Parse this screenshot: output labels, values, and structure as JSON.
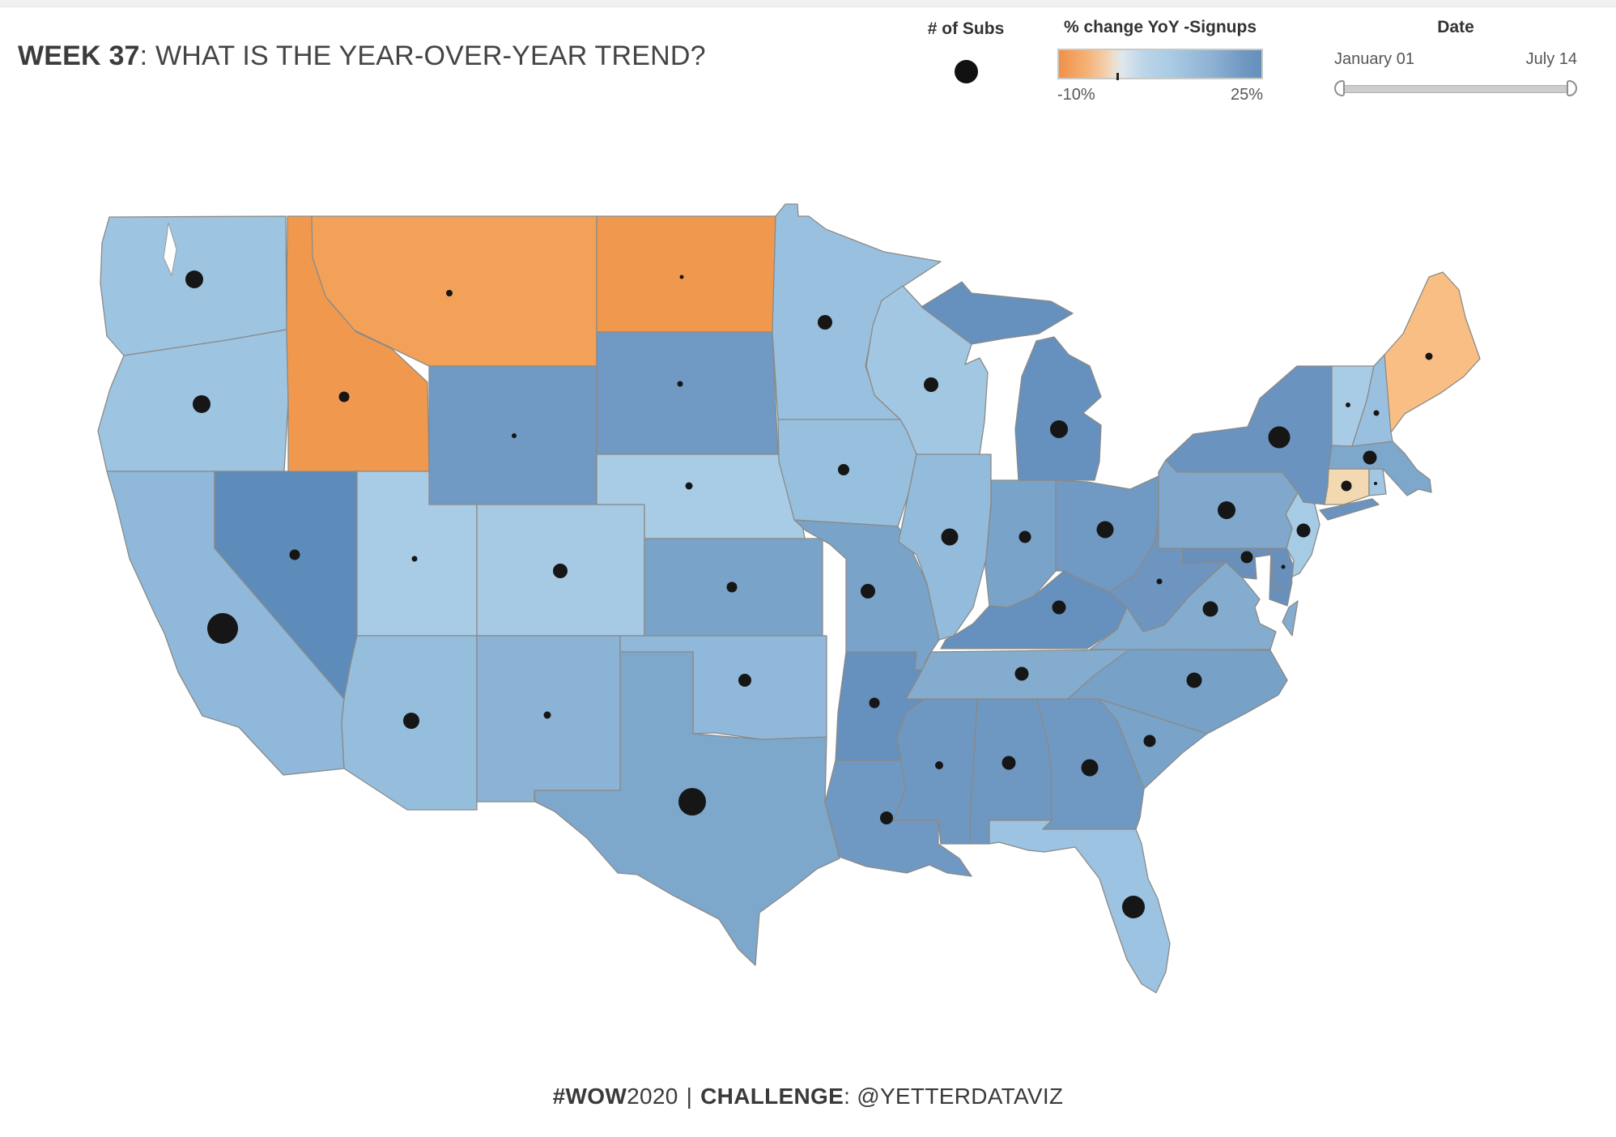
{
  "header": {
    "title_bold": "WEEK 37",
    "title_rest": ": WHAT IS THE YEAR-OVER-YEAR TREND?"
  },
  "legends": {
    "subs": {
      "label": "# of Subs"
    },
    "color": {
      "label": "% change YoY -Signups",
      "min_label": "-10%",
      "max_label": "25%",
      "min_value": -10,
      "max_value": 25,
      "zero_tick_pct": 28.6,
      "min_color": "#F0914A",
      "max_color": "#6590BC"
    },
    "date": {
      "label": "Date",
      "start_label": "January 01",
      "end_label": "July 14"
    }
  },
  "footer": {
    "tag_bold": "#WOW",
    "tag_rest": "2020",
    "separator": "|",
    "challenge_bold": "CHALLENGE",
    "challenge_rest": ": @YETTERDATAVIZ"
  },
  "chart_data": {
    "type": "heatmap",
    "subtype": "us-state-choropleth-with-sized-dots",
    "title": "WEEK 37: WHAT IS THE YEAR-OVER-YEAR TREND?",
    "color_scale": {
      "label": "% change YoY -Signups",
      "min": -10,
      "max": 25,
      "min_color": "#F0914A",
      "max_color": "#6590BC"
    },
    "size_legend": {
      "label": "# of Subs"
    },
    "date_filter": {
      "label": "Date",
      "start": "January 01",
      "end": "July 14"
    },
    "dot_color": "#161616",
    "state_border_color": "#8a8a88",
    "states": [
      {
        "id": "wa",
        "state": "Washington",
        "fill": "#9DC4E1",
        "yoy_pct_est": 10,
        "dot_r": 11
      },
      {
        "id": "or",
        "state": "Oregon",
        "fill": "#9DC4E1",
        "yoy_pct_est": 10,
        "dot_r": 11
      },
      {
        "id": "ca",
        "state": "California",
        "fill": "#8FB8DA",
        "yoy_pct_est": 12,
        "dot_r": 19
      },
      {
        "id": "nv",
        "state": "Nevada",
        "fill": "#5E8CBA",
        "yoy_pct_est": 24,
        "dot_r": 6.5
      },
      {
        "id": "id",
        "state": "Idaho",
        "fill": "#F0994E",
        "yoy_pct_est": -8,
        "dot_r": 6.5
      },
      {
        "id": "mt",
        "state": "Montana",
        "fill": "#F3A159",
        "yoy_pct_est": -7,
        "dot_r": 4
      },
      {
        "id": "wy",
        "state": "Wyoming",
        "fill": "#7099C3",
        "yoy_pct_est": 18,
        "dot_r": 3
      },
      {
        "id": "ut",
        "state": "Utah",
        "fill": "#A9CCE6",
        "yoy_pct_est": 8,
        "dot_r": 3.5
      },
      {
        "id": "co",
        "state": "Colorado",
        "fill": "#A6CAE4",
        "yoy_pct_est": 9,
        "dot_r": 9
      },
      {
        "id": "az",
        "state": "Arizona",
        "fill": "#95BEDD",
        "yoy_pct_est": 11,
        "dot_r": 10
      },
      {
        "id": "nm",
        "state": "New Mexico",
        "fill": "#8AB3D6",
        "yoy_pct_est": 13,
        "dot_r": 4.5
      },
      {
        "id": "nd",
        "state": "North Dakota",
        "fill": "#F0994E",
        "yoy_pct_est": -8,
        "dot_r": 2.5
      },
      {
        "id": "sd",
        "state": "South Dakota",
        "fill": "#7099C3",
        "yoy_pct_est": 18,
        "dot_r": 3.5
      },
      {
        "id": "ne",
        "state": "Nebraska",
        "fill": "#A9CCE6",
        "yoy_pct_est": 8,
        "dot_r": 4.5
      },
      {
        "id": "ks",
        "state": "Kansas",
        "fill": "#79A3C8",
        "yoy_pct_est": 17,
        "dot_r": 6.5
      },
      {
        "id": "ok",
        "state": "Oklahoma",
        "fill": "#8FB8DA",
        "yoy_pct_est": 12,
        "dot_r": 8
      },
      {
        "id": "tx",
        "state": "Texas",
        "fill": "#7EA7CC",
        "yoy_pct_est": 16,
        "dot_r": 17
      },
      {
        "id": "mn",
        "state": "Minnesota",
        "fill": "#99C1DF",
        "yoy_pct_est": 10,
        "dot_r": 9
      },
      {
        "id": "ia",
        "state": "Iowa",
        "fill": "#97BFDE",
        "yoy_pct_est": 11,
        "dot_r": 7
      },
      {
        "id": "mo",
        "state": "Missouri",
        "fill": "#79A3C8",
        "yoy_pct_est": 17,
        "dot_r": 9
      },
      {
        "id": "ar",
        "state": "Arkansas",
        "fill": "#6690BD",
        "yoy_pct_est": 21,
        "dot_r": 6.5
      },
      {
        "id": "la",
        "state": "Louisiana",
        "fill": "#6F99C2",
        "yoy_pct_est": 19,
        "dot_r": 8
      },
      {
        "id": "wi",
        "state": "Wisconsin",
        "fill": "#A2C7E2",
        "yoy_pct_est": 9,
        "dot_r": 9
      },
      {
        "id": "il",
        "state": "Illinois",
        "fill": "#93BCDC",
        "yoy_pct_est": 11,
        "dot_r": 10.5
      },
      {
        "id": "in",
        "state": "Indiana",
        "fill": "#79A3C8",
        "yoy_pct_est": 17,
        "dot_r": 7.5
      },
      {
        "id": "mi",
        "state": "Michigan",
        "fill": "#6690BD",
        "yoy_pct_est": 21,
        "dot_r": 11
      },
      {
        "id": "oh",
        "state": "Ohio",
        "fill": "#7099C3",
        "yoy_pct_est": 18,
        "dot_r": 10.5
      },
      {
        "id": "ky",
        "state": "Kentucky",
        "fill": "#6690BD",
        "yoy_pct_est": 21,
        "dot_r": 8.5
      },
      {
        "id": "tn",
        "state": "Tennessee",
        "fill": "#84ACCE",
        "yoy_pct_est": 15,
        "dot_r": 8.5
      },
      {
        "id": "ms",
        "state": "Mississippi",
        "fill": "#6E97C1",
        "yoy_pct_est": 19,
        "dot_r": 5
      },
      {
        "id": "al",
        "state": "Alabama",
        "fill": "#6E97C1",
        "yoy_pct_est": 19,
        "dot_r": 8.5
      },
      {
        "id": "ga",
        "state": "Georgia",
        "fill": "#6F99C2",
        "yoy_pct_est": 19,
        "dot_r": 10.5
      },
      {
        "id": "fl",
        "state": "Florida",
        "fill": "#9CC3E1",
        "yoy_pct_est": 10,
        "dot_r": 14
      },
      {
        "id": "sc",
        "state": "South Carolina",
        "fill": "#79A3C8",
        "yoy_pct_est": 17,
        "dot_r": 7.5
      },
      {
        "id": "nc",
        "state": "North Carolina",
        "fill": "#77A1C7",
        "yoy_pct_est": 17,
        "dot_r": 9.5
      },
      {
        "id": "va",
        "state": "Virginia",
        "fill": "#84ACCE",
        "yoy_pct_est": 15,
        "dot_r": 9.5
      },
      {
        "id": "wv",
        "state": "West Virginia",
        "fill": "#6D95BF",
        "yoy_pct_est": 20,
        "dot_r": 3.5
      },
      {
        "id": "md",
        "state": "Maryland",
        "fill": "#6890BB",
        "yoy_pct_est": 22,
        "dot_r": 7.5
      },
      {
        "id": "de",
        "state": "Delaware",
        "fill": "#6890BB",
        "yoy_pct_est": 22,
        "dot_r": 2.5
      },
      {
        "id": "nj",
        "state": "New Jersey",
        "fill": "#A6CBE5",
        "yoy_pct_est": 8,
        "dot_r": 8.5
      },
      {
        "id": "pa",
        "state": "Pennsylvania",
        "fill": "#7FA8CC",
        "yoy_pct_est": 16,
        "dot_r": 11
      },
      {
        "id": "ny",
        "state": "New York",
        "fill": "#6A93BF",
        "yoy_pct_est": 20,
        "dot_r": 13.5
      },
      {
        "id": "ct",
        "state": "Connecticut",
        "fill": "#F3D9B1",
        "yoy_pct_est": -2,
        "dot_r": 6.5
      },
      {
        "id": "ri",
        "state": "Rhode Island",
        "fill": "#A2C7E2",
        "yoy_pct_est": 9,
        "dot_r": 2
      },
      {
        "id": "ma",
        "state": "Massachusetts",
        "fill": "#7EA7CC",
        "yoy_pct_est": 16,
        "dot_r": 8.5
      },
      {
        "id": "vt",
        "state": "Vermont",
        "fill": "#A9CCE6",
        "yoy_pct_est": 8,
        "dot_r": 3
      },
      {
        "id": "nh",
        "state": "New Hampshire",
        "fill": "#99C1DF",
        "yoy_pct_est": 10,
        "dot_r": 3.5
      },
      {
        "id": "me",
        "state": "Maine",
        "fill": "#F9BE83",
        "yoy_pct_est": -5,
        "dot_r": 4.5
      }
    ]
  }
}
